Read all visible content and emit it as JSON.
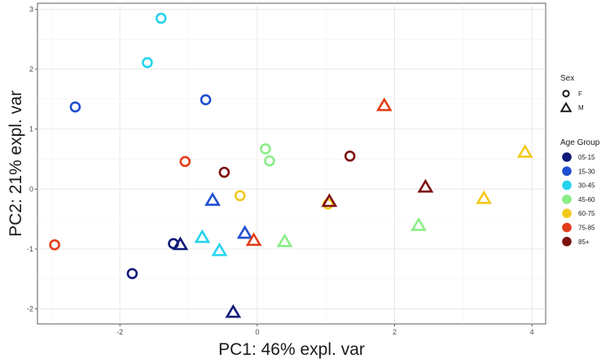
{
  "chart_data": {
    "type": "scatter",
    "xlabel": "PC1: 46% expl. var",
    "ylabel": "PC2: 21% expl. var",
    "xlim": [
      -3.2,
      4.2
    ],
    "ylim": [
      -2.25,
      3.1
    ],
    "x_ticks": [
      -2,
      0,
      2,
      4
    ],
    "y_ticks": [
      -2,
      -1,
      0,
      1,
      2,
      3
    ],
    "grid": true,
    "legend_position": "right",
    "legends": {
      "shape": {
        "title": "Sex",
        "entries": [
          {
            "label": "F",
            "shape": "circle"
          },
          {
            "label": "M",
            "shape": "triangle"
          }
        ]
      },
      "color": {
        "title": "Age Group",
        "entries": [
          {
            "label": "05-15",
            "color": "#101a78"
          },
          {
            "label": "15-30",
            "color": "#1f4fd1"
          },
          {
            "label": "30-45",
            "color": "#25d3ee"
          },
          {
            "label": "45-60",
            "color": "#8aee86"
          },
          {
            "label": "60-75",
            "color": "#f3c91c"
          },
          {
            "label": "75-85",
            "color": "#e23d18"
          },
          {
            "label": "85+",
            "color": "#7d1010"
          }
        ]
      }
    },
    "points": [
      {
        "x": -2.65,
        "y": 1.37,
        "sex": "F",
        "group": "15-30"
      },
      {
        "x": -0.75,
        "y": 1.49,
        "sex": "F",
        "group": "15-30"
      },
      {
        "x": -1.4,
        "y": 2.85,
        "sex": "F",
        "group": "30-45"
      },
      {
        "x": -1.6,
        "y": 2.11,
        "sex": "F",
        "group": "30-45"
      },
      {
        "x": -2.95,
        "y": -0.93,
        "sex": "F",
        "group": "75-85"
      },
      {
        "x": -1.05,
        "y": 0.46,
        "sex": "F",
        "group": "75-85"
      },
      {
        "x": -0.48,
        "y": 0.28,
        "sex": "F",
        "group": "85+"
      },
      {
        "x": 1.35,
        "y": 0.55,
        "sex": "F",
        "group": "85+"
      },
      {
        "x": 0.12,
        "y": 0.67,
        "sex": "F",
        "group": "45-60"
      },
      {
        "x": 0.18,
        "y": 0.47,
        "sex": "F",
        "group": "45-60"
      },
      {
        "x": -0.25,
        "y": -0.11,
        "sex": "F",
        "group": "60-75"
      },
      {
        "x": 1.03,
        "y": -0.25,
        "sex": "F",
        "group": "60-75"
      },
      {
        "x": -1.82,
        "y": -1.41,
        "sex": "F",
        "group": "05-15"
      },
      {
        "x": -1.22,
        "y": -0.91,
        "sex": "F",
        "group": "05-15"
      },
      {
        "x": -1.12,
        "y": -0.92,
        "sex": "M",
        "group": "05-15"
      },
      {
        "x": -0.35,
        "y": -2.05,
        "sex": "M",
        "group": "05-15"
      },
      {
        "x": -0.65,
        "y": -0.18,
        "sex": "M",
        "group": "15-30"
      },
      {
        "x": -0.18,
        "y": -0.73,
        "sex": "M",
        "group": "15-30"
      },
      {
        "x": -0.8,
        "y": -0.8,
        "sex": "M",
        "group": "30-45"
      },
      {
        "x": -0.55,
        "y": -1.02,
        "sex": "M",
        "group": "30-45"
      },
      {
        "x": 0.4,
        "y": -0.87,
        "sex": "M",
        "group": "45-60"
      },
      {
        "x": 2.35,
        "y": -0.6,
        "sex": "M",
        "group": "45-60"
      },
      {
        "x": 3.3,
        "y": -0.15,
        "sex": "M",
        "group": "60-75"
      },
      {
        "x": 3.9,
        "y": 0.62,
        "sex": "M",
        "group": "60-75"
      },
      {
        "x": -0.05,
        "y": -0.85,
        "sex": "M",
        "group": "75-85"
      },
      {
        "x": 1.85,
        "y": 1.4,
        "sex": "M",
        "group": "75-85"
      },
      {
        "x": 1.05,
        "y": -0.2,
        "sex": "M",
        "group": "85+"
      },
      {
        "x": 2.45,
        "y": 0.04,
        "sex": "M",
        "group": "85+"
      }
    ]
  }
}
